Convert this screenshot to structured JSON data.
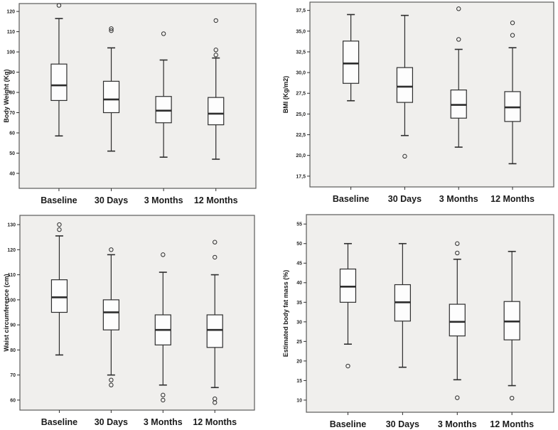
{
  "figure": {
    "description": "Four SPSS-style box plots of anthropometric measures at four follow-up time points",
    "colors": {
      "page_bg": "#ffffff",
      "panel_bg": "#f0efed",
      "frame": "#5a5a5a",
      "line": "#2d2d2d",
      "box_fill": "#fdfdfd",
      "text": "#1a1a1a"
    }
  },
  "chart_data": [
    {
      "type": "boxplot",
      "title": "",
      "xlabel": "",
      "ylabel": "Body Weight (Kg)",
      "categories": [
        "Baseline",
        "30 Days",
        "3 Months",
        "12 Months"
      ],
      "ytick_values": [
        40,
        50,
        60,
        70,
        80,
        90,
        100,
        110,
        120
      ],
      "ytick_labels": [
        "40",
        "50",
        "60",
        "70",
        "80",
        "90",
        "100",
        "110",
        "120"
      ],
      "ylim": [
        32.6,
        123.9
      ],
      "grid": false,
      "legend": "none",
      "series": [
        {
          "category": "Baseline",
          "low": 58.5,
          "q1": 76,
          "median": 83.5,
          "q3": 94,
          "high": 116.5,
          "outliers": [
            123
          ]
        },
        {
          "category": "30 Days",
          "low": 51,
          "q1": 70,
          "median": 76.5,
          "q3": 85.5,
          "high": 102,
          "outliers": [
            110.5,
            111.5
          ]
        },
        {
          "category": "3 Months",
          "low": 48,
          "q1": 65,
          "median": 71,
          "q3": 78,
          "high": 96,
          "outliers": [
            109
          ]
        },
        {
          "category": "12 Months",
          "low": 47,
          "q1": 64,
          "median": 69.5,
          "q3": 77.5,
          "high": 97,
          "outliers": [
            98.5,
            101,
            115.5
          ]
        }
      ]
    },
    {
      "type": "boxplot",
      "title": "",
      "xlabel": "",
      "ylabel": "BMI (Kg/m2)",
      "categories": [
        "Baseline",
        "30 Days",
        "3 Months",
        "12 Months"
      ],
      "ytick_values": [
        17.5,
        20.0,
        22.5,
        25.0,
        27.5,
        30.0,
        32.5,
        35.0,
        37.5
      ],
      "ytick_labels": [
        "17,5",
        "20,0",
        "22,5",
        "25,0",
        "27,5",
        "30,0",
        "32,5",
        "35,0",
        "37,5"
      ],
      "ylim": [
        16.2,
        38.5
      ],
      "grid": false,
      "legend": "none",
      "series": [
        {
          "category": "Baseline",
          "low": 26.6,
          "q1": 28.7,
          "median": 31.1,
          "q3": 33.8,
          "high": 37.0,
          "outliers": []
        },
        {
          "category": "30 Days",
          "low": 22.4,
          "q1": 26.4,
          "median": 28.3,
          "q3": 30.6,
          "high": 36.9,
          "outliers": [
            19.9
          ]
        },
        {
          "category": "3 Months",
          "low": 21.0,
          "q1": 24.5,
          "median": 26.1,
          "q3": 27.9,
          "high": 32.8,
          "outliers": [
            34.0,
            37.7
          ]
        },
        {
          "category": "12 Months",
          "low": 19.0,
          "q1": 24.1,
          "median": 25.8,
          "q3": 27.7,
          "high": 33.0,
          "outliers": [
            34.5,
            36.0
          ]
        }
      ]
    },
    {
      "type": "boxplot",
      "title": "",
      "xlabel": "",
      "ylabel": "Waist circumference (cm)",
      "categories": [
        "Baseline",
        "30 Days",
        "3 Months",
        "12 Months"
      ],
      "ytick_values": [
        60,
        70,
        80,
        90,
        100,
        110,
        120,
        130
      ],
      "ytick_labels": [
        "60",
        "70",
        "80",
        "90",
        "100",
        "110",
        "120",
        "130"
      ],
      "ylim": [
        56.0,
        133.7
      ],
      "grid": false,
      "legend": "none",
      "series": [
        {
          "category": "Baseline",
          "low": 78,
          "q1": 95,
          "median": 101,
          "q3": 108,
          "high": 125.5,
          "outliers": [
            128,
            130
          ]
        },
        {
          "category": "30 Days",
          "low": 70,
          "q1": 88,
          "median": 95,
          "q3": 100,
          "high": 118,
          "outliers": [
            66,
            68,
            120
          ]
        },
        {
          "category": "3 Months",
          "low": 66,
          "q1": 82,
          "median": 88,
          "q3": 94,
          "high": 111,
          "outliers": [
            60,
            62,
            118
          ]
        },
        {
          "category": "12 Months",
          "low": 65,
          "q1": 81,
          "median": 88,
          "q3": 94,
          "high": 110,
          "outliers": [
            59,
            60.5,
            117,
            123
          ]
        }
      ]
    },
    {
      "type": "boxplot",
      "title": "",
      "xlabel": "",
      "ylabel": "Estimated body fat mass (%)",
      "categories": [
        "Baseline",
        "30 Days",
        "3 Months",
        "12 Months"
      ],
      "ytick_values": [
        10,
        15,
        20,
        25,
        30,
        35,
        40,
        45,
        50,
        55
      ],
      "ytick_labels": [
        "10",
        "15",
        "20",
        "25",
        "30",
        "35",
        "40",
        "45",
        "50",
        "55"
      ],
      "ylim": [
        6.9,
        57.4
      ],
      "grid": false,
      "legend": "none",
      "series": [
        {
          "category": "Baseline",
          "low": 24.3,
          "q1": 35.0,
          "median": 39.0,
          "q3": 43.5,
          "high": 50.0,
          "outliers": [
            18.7
          ]
        },
        {
          "category": "30 Days",
          "low": 18.4,
          "q1": 30.2,
          "median": 35.0,
          "q3": 39.5,
          "high": 50.0,
          "outliers": []
        },
        {
          "category": "3 Months",
          "low": 15.2,
          "q1": 26.4,
          "median": 30.0,
          "q3": 34.5,
          "high": 46.0,
          "outliers": [
            10.6,
            47.6,
            50.0
          ]
        },
        {
          "category": "12 Months",
          "low": 13.7,
          "q1": 25.4,
          "median": 30.1,
          "q3": 35.2,
          "high": 48.0,
          "outliers": [
            10.5
          ]
        }
      ]
    }
  ]
}
